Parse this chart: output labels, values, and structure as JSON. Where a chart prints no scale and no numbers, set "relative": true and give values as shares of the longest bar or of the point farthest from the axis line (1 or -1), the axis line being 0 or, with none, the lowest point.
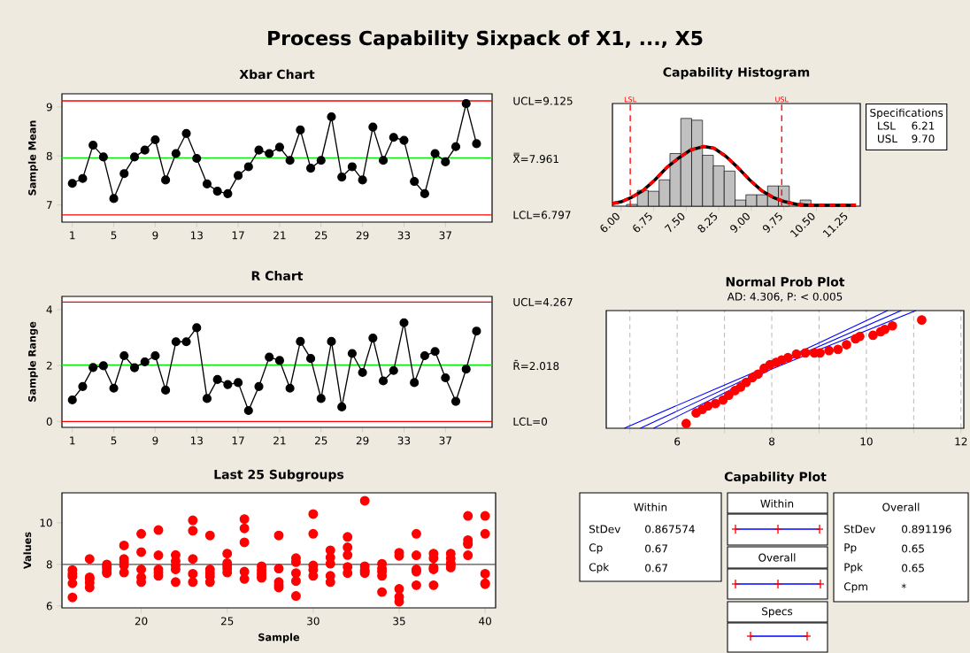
{
  "chart_data": [
    {
      "type": "other",
      "title": "Process Capability Sixpack of X1, ..., X5"
    },
    {
      "type": "line",
      "title": "Xbar Chart",
      "ylabel": "Sample Mean",
      "marker": "circle",
      "color": "#000000",
      "x": [
        1,
        2,
        3,
        4,
        5,
        6,
        7,
        8,
        9,
        10,
        11,
        12,
        13,
        14,
        15,
        16,
        17,
        18,
        19,
        20,
        21,
        22,
        23,
        24,
        25,
        26,
        27,
        28,
        29,
        30,
        31,
        32,
        33,
        34,
        35,
        36,
        37,
        38,
        39,
        40
      ],
      "values": [
        7.44,
        7.54,
        8.22,
        7.98,
        7.13,
        7.64,
        7.98,
        8.12,
        8.33,
        7.51,
        8.05,
        8.46,
        7.95,
        7.43,
        7.28,
        7.23,
        7.6,
        7.78,
        8.12,
        8.05,
        8.18,
        7.91,
        8.53,
        7.75,
        7.91,
        8.8,
        7.57,
        7.78,
        7.51,
        8.59,
        7.91,
        8.38,
        8.32,
        7.48,
        7.23,
        8.05,
        7.88,
        8.19,
        9.07,
        8.25
      ],
      "xlim": [
        0,
        41.5
      ],
      "xticks": [
        1,
        5,
        9,
        13,
        17,
        21,
        25,
        29,
        33,
        37
      ],
      "ylim": [
        6.65,
        9.27
      ],
      "yticks": [
        7,
        8,
        9
      ],
      "ref_lines": [
        {
          "axis": "y",
          "value": 9.125,
          "label": "UCL=9.125",
          "color": "#ff0000"
        },
        {
          "axis": "y",
          "value": 7.961,
          "label": "X̿=7.961",
          "color": "#00ee00"
        },
        {
          "axis": "y",
          "value": 6.797,
          "label": "LCL=6.797",
          "color": "#ff0000"
        }
      ]
    },
    {
      "type": "histogram",
      "title": "Capability Histogram",
      "relative": true,
      "color": "#c0c0c0",
      "bins": [
        6.125,
        6.375,
        6.625,
        6.875,
        7.125,
        7.375,
        7.625,
        7.875,
        8.125,
        8.375,
        8.625,
        8.875,
        9.125,
        9.375,
        9.625,
        9.875,
        10.125,
        10.375
      ],
      "values": [
        0.02,
        0.18,
        0.17,
        0.3,
        0.6,
        1.0,
        0.98,
        0.58,
        0.46,
        0.4,
        0.07,
        0.13,
        0.13,
        0.23,
        0.23,
        0,
        0.07
      ],
      "xlim": [
        5.8,
        11.51
      ],
      "xticks": [
        {
          "value": 6,
          "label": "6.00"
        },
        6.75,
        {
          "value": 7.5,
          "label": "7.50"
        },
        8.25,
        {
          "value": 9,
          "label": "9.00"
        },
        9.75,
        {
          "value": 10.5,
          "label": "10.50"
        },
        11.25
      ],
      "tick_labels": "x",
      "ref_lines": [
        {
          "axis": "x",
          "value": 6.21,
          "label": "LSL",
          "color": "#ff0000",
          "line_style": "dashed"
        },
        {
          "axis": "x",
          "value": 9.7,
          "label": "USL",
          "color": "#ff0000",
          "line_style": "dashed"
        }
      ],
      "series": [
        {
          "type": "line",
          "color": "#000000",
          "x": [
            5.8,
            6.0,
            6.24,
            6.51,
            6.78,
            7.05,
            7.33,
            7.6,
            7.9,
            8.14,
            8.41,
            8.69,
            8.96,
            9.23,
            9.5,
            9.78,
            10.05,
            10.32,
            10.73,
            11.41
          ],
          "values": [
            0.03,
            0.05,
            0.1,
            0.18,
            0.3,
            0.44,
            0.55,
            0.64,
            0.68,
            0.66,
            0.57,
            0.44,
            0.3,
            0.18,
            0.1,
            0.05,
            0.02,
            0.01,
            0.01,
            0.01
          ]
        },
        {
          "type": "line",
          "color": "#ff0000",
          "line_style": "dashed",
          "x": [
            5.8,
            6.0,
            6.24,
            6.51,
            6.78,
            7.05,
            7.33,
            7.6,
            7.9,
            8.14,
            8.41,
            8.69,
            8.96,
            9.23,
            9.5,
            9.78,
            10.05,
            10.32,
            10.73,
            11.41
          ],
          "values": [
            0.03,
            0.05,
            0.1,
            0.18,
            0.3,
            0.44,
            0.55,
            0.64,
            0.68,
            0.66,
            0.57,
            0.44,
            0.3,
            0.18,
            0.1,
            0.05,
            0.02,
            0.01,
            0.01,
            0.01
          ]
        }
      ],
      "annotations": [
        "Specifications",
        "LSL",
        "6.21",
        "USL",
        "9.70"
      ]
    },
    {
      "type": "line",
      "title": "R Chart",
      "ylabel": "Sample Range",
      "marker": "circle",
      "color": "#000000",
      "x": [
        1,
        2,
        3,
        4,
        5,
        6,
        7,
        8,
        9,
        10,
        11,
        12,
        13,
        14,
        15,
        16,
        17,
        18,
        19,
        20,
        21,
        22,
        23,
        24,
        25,
        26,
        27,
        28,
        29,
        30,
        31,
        32,
        33,
        34,
        35,
        36,
        37,
        38,
        39,
        40
      ],
      "values": [
        0.77,
        1.25,
        1.93,
        1.99,
        1.19,
        2.35,
        1.92,
        2.13,
        2.35,
        1.12,
        2.85,
        2.85,
        3.35,
        0.82,
        1.5,
        1.32,
        1.39,
        0.39,
        1.25,
        2.3,
        2.18,
        1.19,
        2.86,
        2.25,
        0.82,
        2.86,
        0.52,
        2.43,
        1.75,
        2.98,
        1.45,
        1.82,
        3.53,
        1.39,
        2.35,
        2.5,
        1.56,
        0.72,
        1.87,
        3.23
      ],
      "xlim": [
        0,
        41.5
      ],
      "xticks": [
        1,
        5,
        9,
        13,
        17,
        21,
        25,
        29,
        33,
        37
      ],
      "ylim": [
        -0.21,
        4.47
      ],
      "yticks": [
        0,
        2,
        4
      ],
      "ref_lines": [
        {
          "axis": "y",
          "value": 4.267,
          "label": "UCL=4.267",
          "color": "#ff0000"
        },
        {
          "axis": "y",
          "value": 2.018,
          "label": "R̄=2.018",
          "color": "#00ee00"
        },
        {
          "axis": "y",
          "value": 0,
          "label": "LCL=0",
          "color": "#ff0000"
        }
      ]
    },
    {
      "type": "scatter",
      "title": "Normal Prob Plot",
      "subtitle": "AD: 4.306, P: < 0.005",
      "relative": true,
      "marker": "circle",
      "grid": "x",
      "tick_labels": "x",
      "xlim": [
        4.5,
        12.06
      ],
      "xticks": [
        {
          "value": 5,
          "label": null
        },
        6,
        {
          "value": 7,
          "label": null
        },
        8,
        {
          "value": 9,
          "label": null
        },
        10,
        {
          "value": 11,
          "label": null
        },
        12
      ],
      "series": [
        {
          "type": "line",
          "marker": "none",
          "color": "#0000ff",
          "x": [
            4.88,
            6.9,
            7.98,
            9.08,
            10.45
          ],
          "values": [
            0,
            0.35,
            0.535,
            0.74,
            1.0
          ]
        },
        {
          "type": "line",
          "marker": "none",
          "color": "#0000ff",
          "x": [
            5.22,
            7.98,
            10.74
          ],
          "values": [
            0,
            0.5175,
            1.0
          ]
        },
        {
          "type": "line",
          "marker": "none",
          "color": "#0000ff",
          "x": [
            5.5,
            6.9,
            7.98,
            9.08,
            11.05
          ],
          "values": [
            0,
            0.28,
            0.5,
            0.68,
            1.0
          ]
        },
        {
          "type": "scatter",
          "color": "#ff0000",
          "x": [
            6.19,
            6.39,
            6.4,
            6.53,
            6.65,
            6.81,
            6.97,
            7.09,
            7.22,
            7.34,
            7.46,
            7.59,
            7.71,
            7.84,
            7.96,
            8.09,
            8.21,
            8.34,
            8.52,
            8.71,
            8.9,
            9.02,
            9.21,
            9.4,
            9.58,
            9.77,
            9.86,
            10.14,
            10.3,
            10.39,
            10.55,
            11.17
          ],
          "values": [
            0.04,
            null,
            0.13,
            0.16,
            0.19,
            0.21,
            0.24,
            0.28,
            0.32,
            0.35,
            0.39,
            0.43,
            0.46,
            0.51,
            0.54,
            0.56,
            0.58,
            0.6,
            0.63,
            0.64,
            0.64,
            0.64,
            0.66,
            0.67,
            0.71,
            0.76,
            0.78,
            0.79,
            0.82,
            0.84,
            0.87,
            0.92
          ]
        }
      ]
    },
    {
      "type": "scatter",
      "title": "Last 25 Subgroups",
      "xlabel": "Sample",
      "ylabel": "Values",
      "marker": "circle",
      "color": "#ff0000",
      "x": [
        16,
        16,
        16,
        16,
        16,
        17,
        17,
        17,
        17,
        17,
        18,
        18,
        18,
        18,
        18,
        19,
        19,
        19,
        19,
        19,
        20,
        20,
        20,
        20,
        20,
        21,
        21,
        21,
        21,
        21,
        22,
        22,
        22,
        22,
        22,
        23,
        23,
        23,
        23,
        23,
        24,
        24,
        24,
        24,
        24,
        25,
        25,
        25,
        25,
        25,
        26,
        26,
        26,
        26,
        26,
        27,
        27,
        27,
        27,
        27,
        28,
        28,
        28,
        28,
        28,
        29,
        29,
        29,
        29,
        29,
        30,
        30,
        30,
        30,
        30,
        31,
        31,
        31,
        31,
        31,
        32,
        32,
        32,
        32,
        32,
        33,
        33,
        33,
        33,
        33,
        34,
        34,
        34,
        34,
        34,
        35,
        35,
        35,
        35,
        35,
        36,
        36,
        36,
        36,
        36,
        37,
        37,
        37,
        37,
        37,
        38,
        38,
        38,
        38,
        38,
        39,
        39,
        39,
        39,
        39,
        40,
        40,
        40,
        40,
        40
      ],
      "values": [
        7.73,
        7.55,
        7.42,
        7.09,
        6.41,
        8.26,
        7.38,
        7.3,
        7.12,
        6.89,
        8.0,
        7.91,
        7.8,
        7.65,
        7.58,
        8.91,
        8.26,
        8.11,
        7.95,
        7.61,
        9.47,
        8.59,
        7.76,
        7.38,
        7.15,
        9.65,
        8.44,
        7.76,
        7.61,
        7.45,
        8.45,
        8.15,
        7.95,
        7.76,
        7.15,
        10.12,
        9.62,
        8.26,
        7.55,
        7.15,
        9.39,
        7.76,
        7.58,
        7.42,
        7.15,
        8.52,
        8.06,
        7.95,
        7.8,
        7.61,
        10.18,
        9.73,
        9.06,
        7.65,
        7.3,
        7.91,
        7.73,
        7.58,
        7.45,
        7.35,
        9.39,
        7.8,
        7.15,
        7.0,
        6.89,
        8.3,
        8.11,
        7.58,
        7.2,
        6.48,
        10.42,
        9.47,
        7.95,
        7.73,
        7.45,
        8.68,
        8.33,
        8.03,
        7.45,
        7.15,
        9.32,
        8.82,
        8.45,
        7.88,
        7.58,
        11.06,
        7.91,
        7.73,
        7.65,
        7.58,
        8.03,
        7.8,
        7.65,
        7.45,
        6.67,
        8.56,
        8.41,
        6.82,
        6.44,
        6.21,
        9.47,
        8.44,
        7.76,
        7.65,
        7.0,
        8.52,
        8.3,
        7.85,
        7.76,
        7.0,
        8.52,
        8.29,
        8.06,
        7.95,
        7.85,
        10.33,
        9.17,
        9.0,
        8.97,
        8.44,
        10.33,
        9.47,
        7.55,
        7.09,
        7.05
      ],
      "xlim": [
        15.39,
        40.61
      ],
      "xticks": [
        20,
        25,
        30,
        35,
        40
      ],
      "ylim": [
        5.91,
        11.44
      ],
      "yticks": [
        6,
        8,
        10
      ],
      "ref_lines": [
        {
          "axis": "y",
          "value": 8,
          "color": "#505050"
        }
      ]
    },
    {
      "type": "other",
      "title": "Capability Plot",
      "annotations": [
        "Within",
        "StDev",
        "0.867574",
        "Cp",
        "0.67",
        "Cpk",
        "0.67",
        "Within",
        "Overall",
        "Specs",
        "Overall",
        "StDev",
        "0.891196",
        "Pp",
        "0.65",
        "Ppk",
        "0.65",
        "Cpm",
        "*"
      ]
    }
  ]
}
